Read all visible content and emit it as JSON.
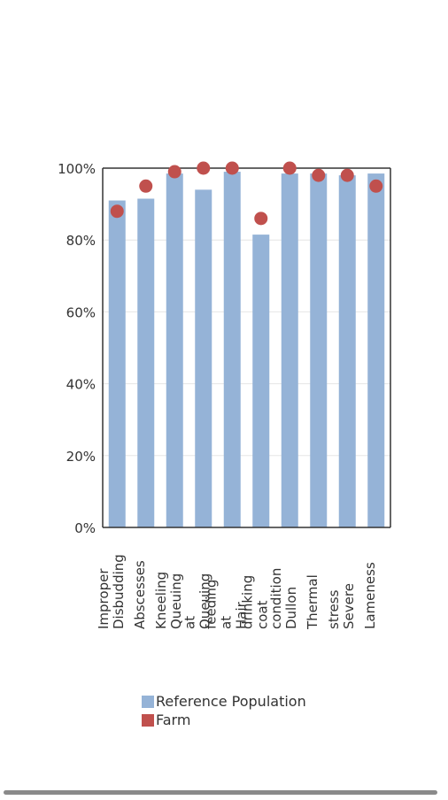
{
  "chart_data": {
    "type": "bar",
    "categories": [
      "Improper Disbudding",
      "Abscesses",
      "Kneeling",
      "Queuing at",
      "Queuing at feeding",
      "Hair coat",
      "drinking condition",
      "Dullon",
      "Thermal stress",
      "Severe Lameness"
    ],
    "series": [
      {
        "name": "Reference Population",
        "type": "bar",
        "values": [
          91,
          91.5,
          98.5,
          94,
          99,
          81.5,
          98.5,
          98.5,
          98,
          98.5
        ]
      },
      {
        "name": "Farm",
        "type": "scatter",
        "values": [
          88,
          95,
          99,
          100,
          100,
          86,
          100,
          98,
          98,
          95
        ]
      }
    ],
    "ylim": [
      0,
      100
    ],
    "yticks": [
      "0%",
      "20%",
      "40%",
      "60%",
      "80%",
      "100%"
    ],
    "grid": true,
    "legend": "bottom",
    "colors": {
      "bar": "#95b3d7",
      "dot": "#c0504d",
      "axis": "#333333",
      "grid": "#e6e6e6"
    },
    "xlabel_lines": [
      [
        "Improper",
        "Disbudding"
      ],
      [
        "Abscesses"
      ],
      [
        "Kneeling",
        "Queuing"
      ],
      [
        "at",
        "Queuing"
      ],
      [
        "feeding",
        "at",
        "Hair"
      ],
      [
        "drinking",
        "coat"
      ],
      [
        "condition",
        "Dullon"
      ],
      [
        "Thermal"
      ],
      [
        "stress",
        "Severe"
      ],
      [
        "Lameness"
      ]
    ]
  },
  "legend": {
    "items": [
      {
        "label": "Reference Population",
        "color": "#95b3d7"
      },
      {
        "label": "Farm",
        "color": "#c0504d"
      }
    ]
  }
}
